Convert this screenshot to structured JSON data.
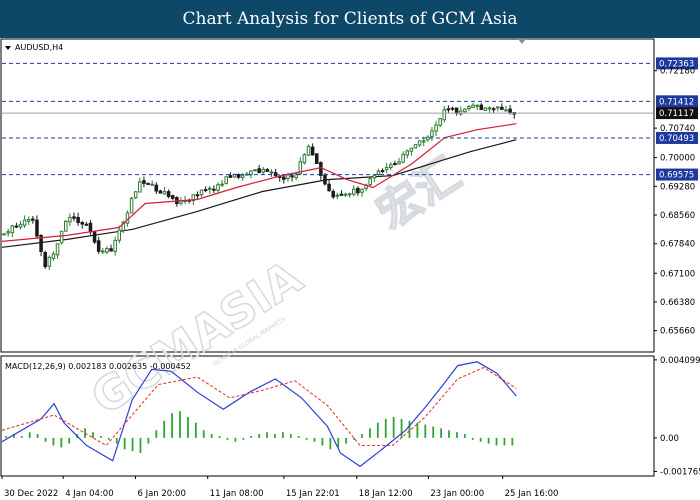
{
  "header": {
    "title": "Chart Analysis for Clients of GCM Asia"
  },
  "colors": {
    "header_bg": "#0d4868",
    "bull": "#2e7d32",
    "bear": "#1b1b1b",
    "ma_fast": "#d81b3c",
    "ma_slow": "#1a1a1a",
    "level_line": "#1f3a9e",
    "macd_line": "#2c3fd6",
    "signal_line": "#e53935",
    "histogram": "#2fa52f",
    "label_bg": "#1f3a9e",
    "price_bg": "#111111"
  },
  "watermark": {
    "brand": "GCMASIA",
    "chinese": "宏汇"
  },
  "chart_data": [
    {
      "type": "candlestick",
      "title": "AUDUSD,H4",
      "y_axis": {
        "ylim": [
          0.6515,
          0.7295
        ],
        "ticks": [
          0.7218,
          0.7074,
          0.7,
          0.6928,
          0.6856,
          0.6784,
          0.671,
          0.6638,
          0.6566
        ]
      },
      "x_labels": [
        "30 Dec 2022",
        "4 Jan 04:00",
        "6 Jan 20:00",
        "11 Jan 08:00",
        "15 Jan 22:01",
        "18 Jan 12:00",
        "23 Jan 00:00",
        "25 Jan 16:00"
      ],
      "x_label_positions": [
        0,
        0.094,
        0.205,
        0.316,
        0.433,
        0.545,
        0.655,
        0.769
      ],
      "levels": [
        {
          "value": 0.72363,
          "label": "0.72363"
        },
        {
          "value": 0.71412,
          "label": "0.71412"
        },
        {
          "value": 0.70493,
          "label": "0.70493"
        },
        {
          "value": 0.69575,
          "label": "0.69575"
        }
      ],
      "current_price": {
        "value": 0.71117,
        "label": "0.71117"
      },
      "close_path": [
        [
          0,
          0.6805
        ],
        [
          0.035,
          0.6845
        ],
        [
          0.05,
          0.6835
        ],
        [
          0.065,
          0.6725
        ],
        [
          0.08,
          0.6765
        ],
        [
          0.1,
          0.6855
        ],
        [
          0.13,
          0.6835
        ],
        [
          0.15,
          0.6755
        ],
        [
          0.17,
          0.6775
        ],
        [
          0.19,
          0.6855
        ],
        [
          0.21,
          0.6935
        ],
        [
          0.225,
          0.6935
        ],
        [
          0.25,
          0.6908
        ],
        [
          0.27,
          0.6885
        ],
        [
          0.3,
          0.6908
        ],
        [
          0.33,
          0.6925
        ],
        [
          0.35,
          0.6955
        ],
        [
          0.37,
          0.6955
        ],
        [
          0.4,
          0.6972
        ],
        [
          0.43,
          0.695
        ],
        [
          0.45,
          0.6955
        ],
        [
          0.47,
          0.7035
        ],
        [
          0.49,
          0.696
        ],
        [
          0.51,
          0.6898
        ],
        [
          0.525,
          0.691
        ],
        [
          0.55,
          0.6918
        ],
        [
          0.565,
          0.6945
        ],
        [
          0.59,
          0.6975
        ],
        [
          0.61,
          0.699
        ],
        [
          0.63,
          0.703
        ],
        [
          0.65,
          0.7045
        ],
        [
          0.665,
          0.7075
        ],
        [
          0.68,
          0.7125
        ],
        [
          0.7,
          0.7112
        ],
        [
          0.72,
          0.7138
        ],
        [
          0.74,
          0.7122
        ],
        [
          0.76,
          0.713
        ],
        [
          0.78,
          0.7112
        ],
        [
          0.79,
          0.7112
        ]
      ],
      "ma_fast_path": [
        [
          0,
          0.679
        ],
        [
          0.1,
          0.6805
        ],
        [
          0.18,
          0.6825
        ],
        [
          0.22,
          0.6885
        ],
        [
          0.3,
          0.6895
        ],
        [
          0.36,
          0.6925
        ],
        [
          0.43,
          0.6955
        ],
        [
          0.49,
          0.6975
        ],
        [
          0.53,
          0.6945
        ],
        [
          0.57,
          0.6925
        ],
        [
          0.63,
          0.6985
        ],
        [
          0.68,
          0.705
        ],
        [
          0.73,
          0.707
        ],
        [
          0.79,
          0.7085
        ]
      ],
      "ma_slow_path": [
        [
          0,
          0.6775
        ],
        [
          0.1,
          0.6795
        ],
        [
          0.2,
          0.682
        ],
        [
          0.3,
          0.6865
        ],
        [
          0.4,
          0.6915
        ],
        [
          0.5,
          0.6945
        ],
        [
          0.6,
          0.6955
        ],
        [
          0.66,
          0.6985
        ],
        [
          0.72,
          0.7015
        ],
        [
          0.79,
          0.7045
        ]
      ]
    },
    {
      "type": "macd",
      "title": "MACD(12,26,9) 0.002183 0.002635 -0.000452",
      "y_axis": {
        "ylim": [
          -0.00195,
          0.00425
        ],
        "ticks": [
          0.004099,
          0.0,
          -0.001765
        ]
      },
      "macd_path": [
        [
          0,
          -0.0002
        ],
        [
          0.06,
          0.001
        ],
        [
          0.08,
          0.0018
        ],
        [
          0.095,
          0.0008
        ],
        [
          0.13,
          -0.0004
        ],
        [
          0.15,
          -0.0008
        ],
        [
          0.17,
          -0.0012
        ],
        [
          0.2,
          0.002
        ],
        [
          0.23,
          0.0036
        ],
        [
          0.26,
          0.0035
        ],
        [
          0.3,
          0.0024
        ],
        [
          0.34,
          0.0015
        ],
        [
          0.38,
          0.0024
        ],
        [
          0.42,
          0.0031
        ],
        [
          0.46,
          0.0021
        ],
        [
          0.5,
          0.0006
        ],
        [
          0.52,
          -0.0008
        ],
        [
          0.55,
          -0.0015
        ],
        [
          0.58,
          -0.0007
        ],
        [
          0.62,
          0.0004
        ],
        [
          0.65,
          0.0016
        ],
        [
          0.68,
          0.0029
        ],
        [
          0.7,
          0.0038
        ],
        [
          0.73,
          0.004
        ],
        [
          0.76,
          0.0034
        ],
        [
          0.79,
          0.0022
        ]
      ],
      "signal_path": [
        [
          0,
          0.0004
        ],
        [
          0.08,
          0.0012
        ],
        [
          0.12,
          0.0004
        ],
        [
          0.16,
          -0.0004
        ],
        [
          0.2,
          0.0012
        ],
        [
          0.24,
          0.0028
        ],
        [
          0.3,
          0.0032
        ],
        [
          0.35,
          0.0021
        ],
        [
          0.4,
          0.0025
        ],
        [
          0.45,
          0.003
        ],
        [
          0.5,
          0.0017
        ],
        [
          0.55,
          -0.0004
        ],
        [
          0.6,
          -0.0004
        ],
        [
          0.65,
          0.0011
        ],
        [
          0.7,
          0.0031
        ],
        [
          0.74,
          0.0037
        ],
        [
          0.79,
          0.0026
        ]
      ],
      "histogram": [
        0.0001,
        0.0002,
        0.0001,
        0.0003,
        0.0002,
        -0.0002,
        -0.0004,
        -0.0005,
        -0.0003,
        0.0002,
        0.0005,
        0.0003,
        0.0001,
        -0.0001,
        -0.0003,
        -0.0006,
        -0.0007,
        -0.0008,
        -0.0003,
        0.0004,
        0.0009,
        0.0013,
        0.0014,
        0.0011,
        0.0008,
        0.0004,
        0.0002,
        0.0001,
        -0.0001,
        -0.0002,
        -0.0001,
        0.0001,
        0.0002,
        0.0003,
        0.0002,
        0.0003,
        0.0002,
        0.0001,
        -0.0001,
        -0.0002,
        -0.0004,
        -0.0006,
        -0.0005,
        -0.0003,
        -0.0001,
        0.0002,
        0.0005,
        0.0008,
        0.001,
        0.0011,
        0.001,
        0.0009,
        0.0008,
        0.0007,
        0.0006,
        0.0005,
        0.0004,
        0.0003,
        0.0002,
        -0.0001,
        -0.0002,
        -0.0003,
        -0.0004,
        -0.0004,
        -0.0004
      ]
    }
  ]
}
